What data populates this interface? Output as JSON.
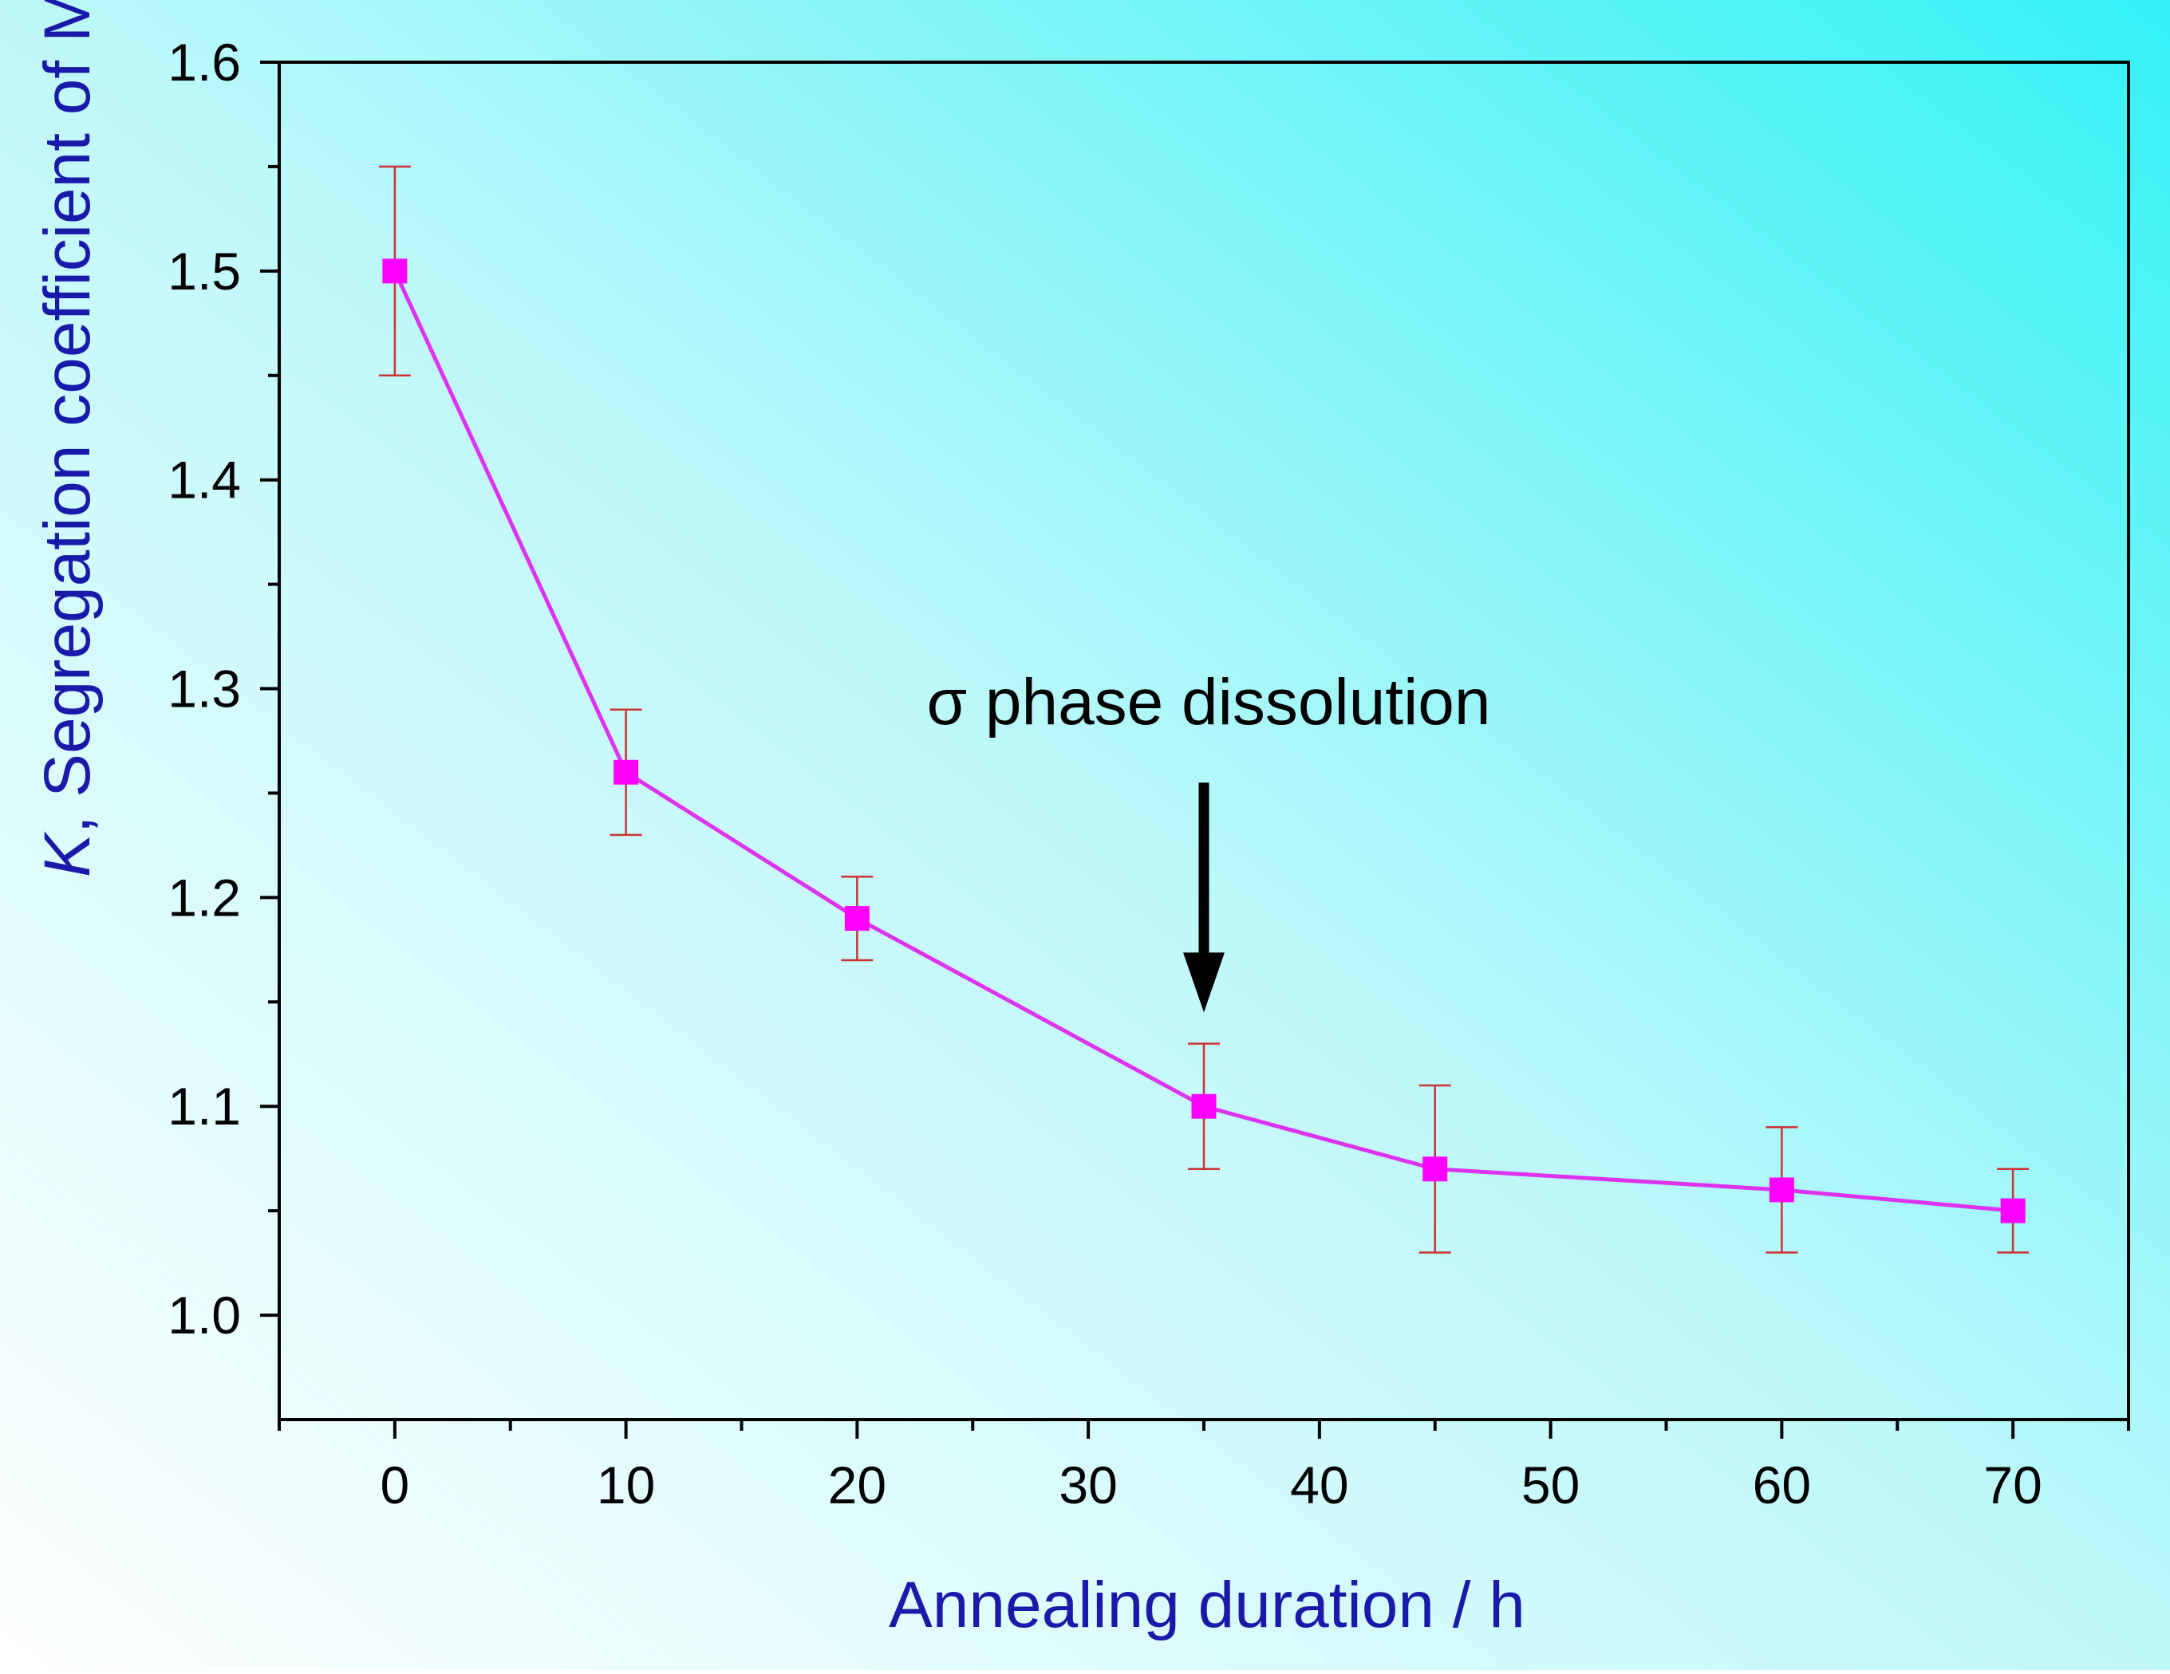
{
  "chart_data": {
    "type": "line",
    "title": "",
    "xlabel": "Annealing duration / h",
    "ylabel_italic": "K",
    "ylabel_rest": ", Segregation coefficient of Mo",
    "xlim": [
      -5,
      75
    ],
    "ylim": [
      0.95,
      1.6
    ],
    "xticks": [
      0,
      10,
      20,
      30,
      40,
      50,
      60,
      70
    ],
    "xtick_labels": [
      "0",
      "10",
      "20",
      "30",
      "40",
      "50",
      "60",
      "70"
    ],
    "xminor_ticks": [
      -5,
      5,
      15,
      25,
      35,
      45,
      55,
      65,
      75
    ],
    "yticks": [
      1.0,
      1.1,
      1.2,
      1.3,
      1.4,
      1.5,
      1.6
    ],
    "ytick_labels": [
      "1.0",
      "1.1",
      "1.2",
      "1.3",
      "1.4",
      "1.5",
      "1.6"
    ],
    "yminor_ticks": [
      1.05,
      1.15,
      1.25,
      1.35,
      1.45,
      1.55
    ],
    "series": [
      {
        "name": "K",
        "x": [
          0,
          10,
          20,
          35,
          45,
          60,
          70
        ],
        "values": [
          1.5,
          1.26,
          1.19,
          1.1,
          1.07,
          1.06,
          1.05
        ],
        "err_low": [
          1.45,
          1.23,
          1.17,
          1.07,
          1.03,
          1.03,
          1.03
        ],
        "err_high": [
          1.55,
          1.29,
          1.21,
          1.13,
          1.11,
          1.09,
          1.07
        ],
        "line_color": "#dd33ee",
        "marker_color": "#ff00ff",
        "error_color": "#cc3333"
      }
    ],
    "annotation": {
      "text": "σ phase dissolution",
      "arrow_x": 35,
      "arrow_from_y": 1.255,
      "arrow_to_y": 1.145
    },
    "colors": {
      "axis_label": "#1a1aaa",
      "tick_label": "#000000",
      "axis_line": "#000000",
      "arrow": "#000000",
      "bg_cyan": "#33f2f6",
      "bg_white": "#ffffff"
    }
  }
}
